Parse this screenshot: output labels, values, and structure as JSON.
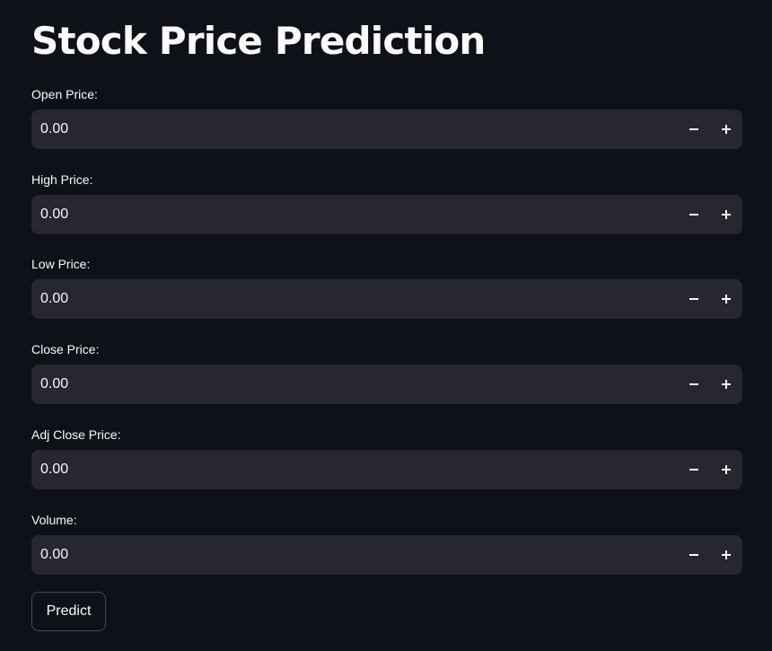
{
  "title": "Stock Price Prediction",
  "fields": [
    {
      "label": "Open Price:",
      "value": "0.00"
    },
    {
      "label": "High Price:",
      "value": "0.00"
    },
    {
      "label": "Low Price:",
      "value": "0.00"
    },
    {
      "label": "Close Price:",
      "value": "0.00"
    },
    {
      "label": "Adj Close Price:",
      "value": "0.00"
    },
    {
      "label": "Volume:",
      "value": "0.00"
    }
  ],
  "predict_button": {
    "label": "Predict"
  },
  "icons": {
    "decrement": "minus-icon",
    "increment": "plus-icon"
  },
  "colors": {
    "background": "#0e1117",
    "input_background": "#262730",
    "text": "#fafafa"
  }
}
